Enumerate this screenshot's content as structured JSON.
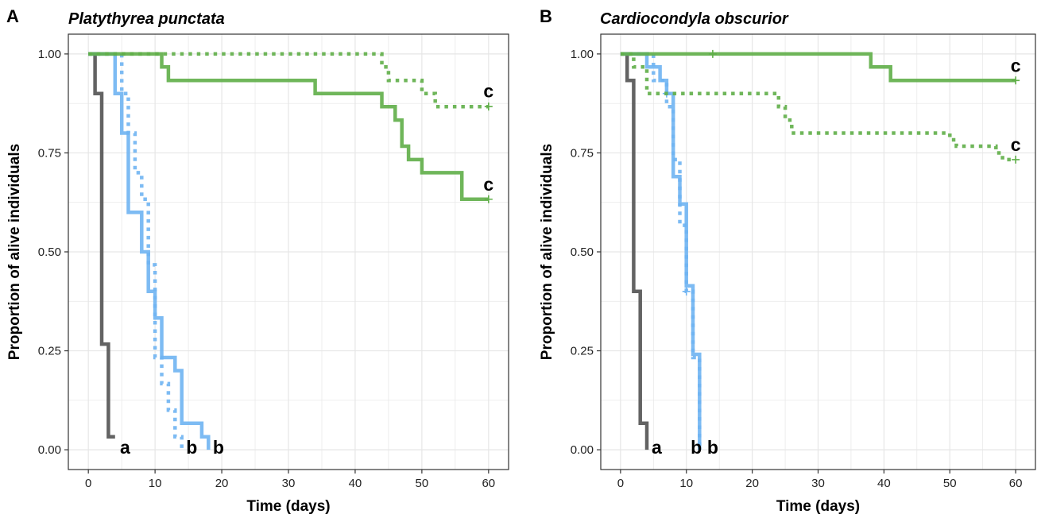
{
  "colors": {
    "control": "#525252",
    "blue": "#6fb4f2",
    "green": "#5fae48",
    "grid": "#e6e6e6",
    "border": "#333333"
  },
  "chart_data": [
    {
      "type": "line",
      "panel_letter": "A",
      "title": "Platythyrea punctata",
      "xlabel": "Time (days)",
      "ylabel": "Proportion of alive individuals",
      "xlim": [
        -3,
        63
      ],
      "ylim": [
        -0.05,
        1.05
      ],
      "xticks": [
        0,
        10,
        20,
        30,
        40,
        50,
        60
      ],
      "xtick_labels": [
        "0",
        "10",
        "20",
        "30",
        "40",
        "50",
        "60"
      ],
      "yticks": [
        0,
        0.25,
        0.5,
        0.75,
        1
      ],
      "ytick_labels": [
        "0.00",
        "0.25",
        "0.50",
        "0.75",
        "1.00"
      ],
      "grid": true,
      "series": [
        {
          "style": "solid",
          "color": "#525252",
          "x": [
            0,
            1,
            1,
            2,
            2,
            3,
            3,
            4
          ],
          "y": [
            1,
            1,
            0.9,
            0.9,
            0.267,
            0.267,
            0.033,
            0.033
          ]
        },
        {
          "style": "solid",
          "color": "#6fb4f2",
          "x": [
            0,
            4,
            4,
            5,
            5,
            6,
            6,
            8,
            8,
            9,
            9,
            10,
            10,
            11,
            11,
            13,
            13,
            14,
            14,
            17,
            17,
            18,
            18
          ],
          "y": [
            1,
            1,
            0.9,
            0.9,
            0.8,
            0.8,
            0.6,
            0.6,
            0.5,
            0.5,
            0.4,
            0.4,
            0.333,
            0.333,
            0.233,
            0.233,
            0.2,
            0.2,
            0.067,
            0.067,
            0.033,
            0.033,
            0
          ]
        },
        {
          "style": "dotted",
          "color": "#6fb4f2",
          "x": [
            0,
            5,
            5,
            6,
            6,
            7,
            7,
            8,
            8,
            9,
            9,
            10,
            10,
            11,
            11,
            12,
            12,
            13,
            13,
            14,
            14
          ],
          "y": [
            1,
            1,
            0.9,
            0.9,
            0.8,
            0.8,
            0.7,
            0.7,
            0.633,
            0.633,
            0.467,
            0.467,
            0.233,
            0.233,
            0.167,
            0.167,
            0.1,
            0.1,
            0.033,
            0.033,
            0
          ]
        },
        {
          "style": "solid",
          "color": "#5fae48",
          "x": [
            0,
            11,
            11,
            12,
            12,
            34,
            34,
            44,
            44,
            46,
            46,
            47,
            47,
            48,
            48,
            50,
            50,
            56,
            56,
            60
          ],
          "y": [
            1,
            1,
            0.967,
            0.967,
            0.933,
            0.933,
            0.9,
            0.9,
            0.867,
            0.867,
            0.833,
            0.833,
            0.767,
            0.767,
            0.733,
            0.733,
            0.7,
            0.7,
            0.633,
            0.633
          ],
          "censored": [
            [
              60,
              0.633
            ]
          ]
        },
        {
          "style": "dotted",
          "color": "#5fae48",
          "x": [
            0,
            44,
            44,
            45,
            45,
            50,
            50,
            52,
            52,
            60
          ],
          "y": [
            1,
            1,
            0.967,
            0.967,
            0.933,
            0.933,
            0.9,
            0.9,
            0.867,
            0.867
          ],
          "censored": [
            [
              60,
              0.867
            ]
          ]
        }
      ],
      "annotations": [
        {
          "text": "a",
          "x": 5.5,
          "y": -0.01
        },
        {
          "text": "b",
          "x": 15.5,
          "y": -0.01
        },
        {
          "text": "b",
          "x": 19.5,
          "y": -0.01
        },
        {
          "text": "c",
          "x": 60,
          "y": 0.89
        },
        {
          "text": "c",
          "x": 60,
          "y": 0.655
        }
      ]
    },
    {
      "type": "line",
      "panel_letter": "B",
      "title": "Cardiocondyla obscurior",
      "xlabel": "Time (days)",
      "ylabel": "Proportion of alive individuals",
      "xlim": [
        -3,
        63
      ],
      "ylim": [
        -0.05,
        1.05
      ],
      "xticks": [
        0,
        10,
        20,
        30,
        40,
        50,
        60
      ],
      "xtick_labels": [
        "0",
        "10",
        "20",
        "30",
        "40",
        "50",
        "60"
      ],
      "yticks": [
        0,
        0.25,
        0.5,
        0.75,
        1
      ],
      "ytick_labels": [
        "0.00",
        "0.25",
        "0.50",
        "0.75",
        "1.00"
      ],
      "grid": true,
      "series": [
        {
          "style": "solid",
          "color": "#525252",
          "x": [
            0,
            1,
            1,
            2,
            2,
            3,
            3,
            4,
            4
          ],
          "y": [
            1,
            1,
            0.933,
            0.933,
            0.4,
            0.4,
            0.067,
            0.067,
            0
          ]
        },
        {
          "style": "solid",
          "color": "#6fb4f2",
          "x": [
            0,
            4,
            4,
            6,
            6,
            7,
            7,
            8,
            8,
            9,
            9,
            10,
            10,
            11,
            11,
            12,
            12
          ],
          "y": [
            1,
            1,
            0.967,
            0.967,
            0.933,
            0.933,
            0.9,
            0.9,
            0.69,
            0.69,
            0.621,
            0.621,
            0.414,
            0.414,
            0.241,
            0.241,
            0
          ],
          "censored": [
            [
              7,
              0.9
            ],
            [
              10,
              0.4
            ]
          ]
        },
        {
          "style": "dotted",
          "color": "#6fb4f2",
          "x": [
            0,
            5,
            5,
            7,
            7,
            8,
            8,
            9,
            9,
            10,
            10,
            11,
            11,
            12,
            12
          ],
          "y": [
            1,
            1,
            0.933,
            0.933,
            0.867,
            0.867,
            0.733,
            0.733,
            0.567,
            0.567,
            0.4,
            0.4,
            0.233,
            0.233,
            0
          ]
        },
        {
          "style": "solid",
          "color": "#5fae48",
          "x": [
            0,
            38,
            38,
            41,
            41,
            60
          ],
          "y": [
            1,
            1,
            0.967,
            0.967,
            0.933,
            0.933
          ],
          "censored": [
            [
              14,
              1
            ],
            [
              60,
              0.933
            ]
          ]
        },
        {
          "style": "dotted",
          "color": "#5fae48",
          "x": [
            0,
            2,
            2,
            4,
            4,
            24,
            24,
            25,
            25,
            26,
            26,
            50,
            50,
            51,
            51,
            57,
            57,
            58,
            58,
            60
          ],
          "y": [
            1,
            1,
            0.967,
            0.967,
            0.9,
            0.9,
            0.867,
            0.867,
            0.833,
            0.833,
            0.8,
            0.8,
            0.783,
            0.783,
            0.767,
            0.767,
            0.75,
            0.75,
            0.733,
            0.733
          ],
          "censored": [
            [
              60,
              0.733
            ]
          ]
        }
      ],
      "annotations": [
        {
          "text": "a",
          "x": 5.5,
          "y": -0.01
        },
        {
          "text": "b",
          "x": 11.5,
          "y": -0.01
        },
        {
          "text": "b",
          "x": 14,
          "y": -0.01
        },
        {
          "text": "c",
          "x": 60,
          "y": 0.955
        },
        {
          "text": "c",
          "x": 60,
          "y": 0.755
        }
      ]
    }
  ]
}
